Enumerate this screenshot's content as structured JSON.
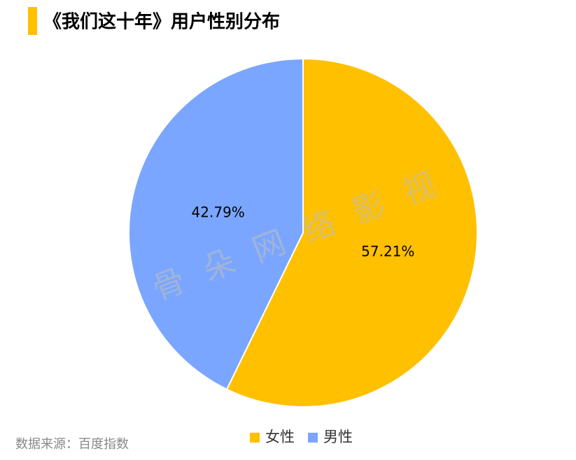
{
  "chart_data": {
    "type": "pie",
    "title": "《我们这十年》用户性别分布",
    "categories": [
      "女性",
      "男性"
    ],
    "values": [
      57.21,
      42.79
    ],
    "value_labels": [
      "57.21%",
      "42.79%"
    ],
    "colors": [
      "#ffc000",
      "#7aa6ff"
    ],
    "legend": "bottom",
    "source": "数据来源：百度指数",
    "watermark": "骨 朵 网 络 影 视"
  }
}
